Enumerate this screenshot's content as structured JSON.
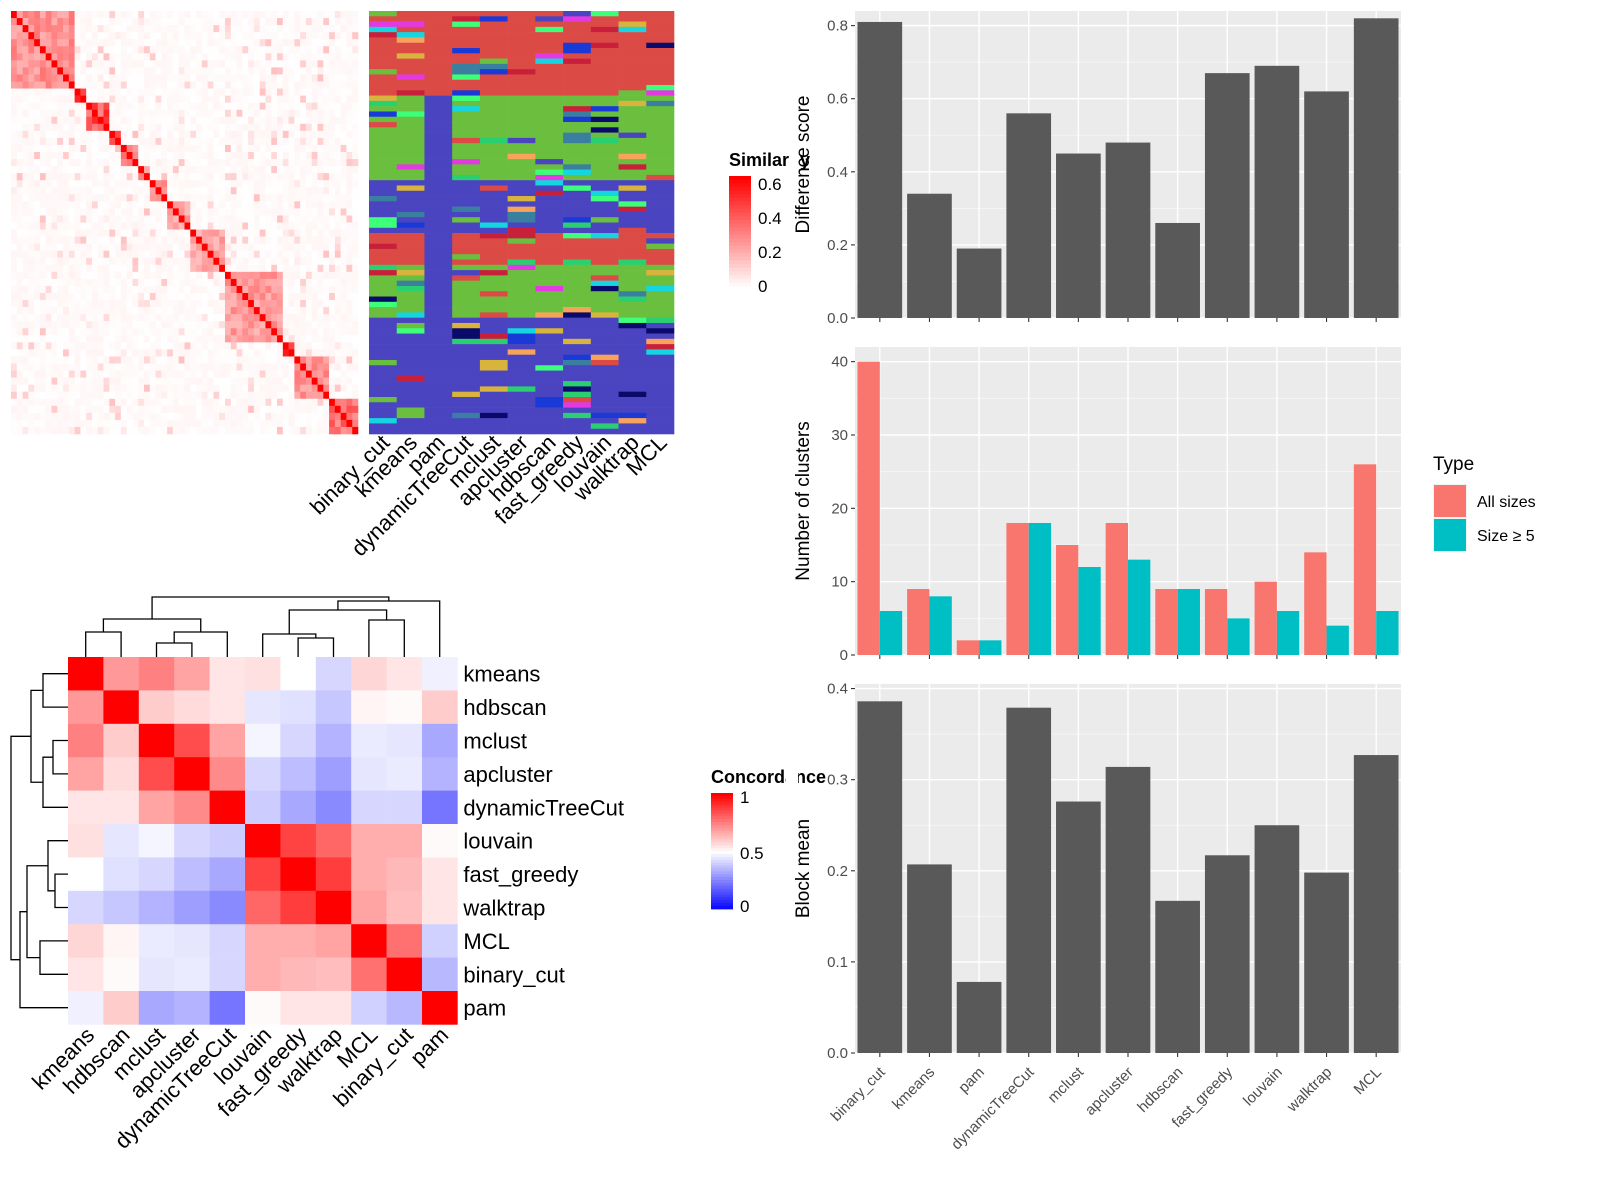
{
  "chart_data": [
    {
      "type": "heatmap",
      "panel": "similarity-matrix",
      "legend": {
        "title": "Similarity",
        "ticks": [
          "0",
          "0.2",
          "0.4",
          "0.6"
        ]
      },
      "diagonal_blocks": [
        {
          "start": 0.0,
          "end": 0.18,
          "strength": 0.55
        },
        {
          "start": 0.18,
          "end": 0.22,
          "strength": 0.9
        },
        {
          "start": 0.22,
          "end": 0.28,
          "strength": 0.85
        },
        {
          "start": 0.28,
          "end": 0.31,
          "strength": 0.95
        },
        {
          "start": 0.31,
          "end": 0.36,
          "strength": 0.7
        },
        {
          "start": 0.36,
          "end": 0.4,
          "strength": 0.6
        },
        {
          "start": 0.4,
          "end": 0.45,
          "strength": 0.5
        },
        {
          "start": 0.45,
          "end": 0.52,
          "strength": 0.45
        },
        {
          "start": 0.52,
          "end": 0.62,
          "strength": 0.45
        },
        {
          "start": 0.62,
          "end": 0.79,
          "strength": 0.5
        },
        {
          "start": 0.79,
          "end": 0.82,
          "strength": 0.95
        },
        {
          "start": 0.82,
          "end": 0.92,
          "strength": 0.55
        },
        {
          "start": 0.92,
          "end": 1.0,
          "strength": 0.7
        }
      ]
    },
    {
      "type": "heatmap",
      "panel": "cluster-assignments",
      "methods": [
        "binary_cut",
        "kmeans",
        "pam",
        "dynamicTreeCut",
        "mclust",
        "apcluster",
        "hdbscan",
        "fast_greedy",
        "louvain",
        "walktrap",
        "MCL"
      ],
      "palette": [
        "#dc4a46",
        "#6bbf3f",
        "#4a44c0",
        "#3dff7a",
        "#e23ae0",
        "#15d6e0",
        "#0a0a6a",
        "#d8b43c",
        "#f7a35c",
        "#3a7fa0",
        "#1a3ad8",
        "#c8203a",
        "#2ad070"
      ]
    },
    {
      "type": "heatmap",
      "panel": "concordance",
      "legend": {
        "title": "Concordance",
        "ticks": [
          "0",
          "0.5",
          "1"
        ]
      },
      "row_labels": [
        "kmeans",
        "hdbscan",
        "mclust",
        "apcluster",
        "dynamicTreeCut",
        "louvain",
        "fast_greedy",
        "walktrap",
        "MCL",
        "binary_cut",
        "pam"
      ],
      "col_labels": [
        "kmeans",
        "hdbscan",
        "mclust",
        "apcluster",
        "dynamicTreeCut",
        "louvain",
        "fast_greedy",
        "walktrap",
        "MCL",
        "binary_cut",
        "pam"
      ],
      "values": [
        [
          1.0,
          0.7,
          0.75,
          0.68,
          0.55,
          0.56,
          0.5,
          0.42,
          0.58,
          0.55,
          0.47
        ],
        [
          0.7,
          1.0,
          0.6,
          0.57,
          0.55,
          0.45,
          0.44,
          0.39,
          0.52,
          0.51,
          0.6
        ],
        [
          0.75,
          0.6,
          1.0,
          0.85,
          0.68,
          0.48,
          0.42,
          0.35,
          0.46,
          0.45,
          0.33
        ],
        [
          0.68,
          0.57,
          0.85,
          1.0,
          0.73,
          0.42,
          0.37,
          0.31,
          0.45,
          0.46,
          0.35
        ],
        [
          0.55,
          0.55,
          0.68,
          0.73,
          1.0,
          0.4,
          0.33,
          0.27,
          0.42,
          0.42,
          0.23
        ],
        [
          0.56,
          0.45,
          0.48,
          0.42,
          0.4,
          1.0,
          0.87,
          0.8,
          0.66,
          0.66,
          0.51
        ],
        [
          0.5,
          0.44,
          0.42,
          0.37,
          0.33,
          0.87,
          1.0,
          0.88,
          0.66,
          0.64,
          0.55
        ],
        [
          0.42,
          0.39,
          0.35,
          0.31,
          0.27,
          0.8,
          0.88,
          1.0,
          0.68,
          0.63,
          0.55
        ],
        [
          0.58,
          0.52,
          0.46,
          0.45,
          0.42,
          0.66,
          0.66,
          0.68,
          1.0,
          0.78,
          0.41
        ],
        [
          0.55,
          0.51,
          0.45,
          0.46,
          0.42,
          0.66,
          0.64,
          0.63,
          0.78,
          1.0,
          0.36
        ],
        [
          0.47,
          0.6,
          0.33,
          0.35,
          0.23,
          0.51,
          0.55,
          0.55,
          0.41,
          0.36,
          1.0
        ]
      ]
    },
    {
      "type": "bar",
      "panel": "difference-score",
      "categories": [
        "binary_cut",
        "kmeans",
        "pam",
        "dynamicTreeCut",
        "mclust",
        "apcluster",
        "hdbscan",
        "fast_greedy",
        "louvain",
        "walktrap",
        "MCL"
      ],
      "values": [
        0.81,
        0.34,
        0.19,
        0.56,
        0.45,
        0.48,
        0.26,
        0.67,
        0.69,
        0.62,
        0.82
      ],
      "ylabel": "Difference score",
      "ylim": [
        0,
        0.84
      ],
      "yticks": [
        0.0,
        0.2,
        0.4,
        0.6,
        0.8
      ],
      "ytick_labels": [
        "0.0",
        "0.2",
        "0.4",
        "0.6",
        "0.8"
      ],
      "bar_color": "#595959",
      "panel_bg": "#ebebeb",
      "grid": true
    },
    {
      "type": "bar",
      "panel": "number-of-clusters",
      "categories": [
        "binary_cut",
        "kmeans",
        "pam",
        "dynamicTreeCut",
        "mclust",
        "apcluster",
        "hdbscan",
        "fast_greedy",
        "louvain",
        "walktrap",
        "MCL"
      ],
      "series": [
        {
          "name": "All sizes",
          "values": [
            40,
            9,
            2,
            18,
            15,
            18,
            9,
            9,
            10,
            14,
            26
          ],
          "color": "#f8766d"
        },
        {
          "name": "Size ≥ 5",
          "values": [
            6,
            8,
            2,
            18,
            12,
            13,
            9,
            5,
            6,
            4,
            6
          ],
          "color": "#00bfc4"
        }
      ],
      "ylabel": "Number of clusters",
      "ylim": [
        0,
        42
      ],
      "yticks": [
        0,
        10,
        20,
        30,
        40
      ],
      "ytick_labels": [
        "0",
        "10",
        "20",
        "30",
        "40"
      ],
      "legend": {
        "title": "Type",
        "position": "right"
      },
      "panel_bg": "#ebebeb",
      "grid": true
    },
    {
      "type": "bar",
      "panel": "block-mean",
      "categories": [
        "binary_cut",
        "kmeans",
        "pam",
        "dynamicTreeCut",
        "mclust",
        "apcluster",
        "hdbscan",
        "fast_greedy",
        "louvain",
        "walktrap",
        "MCL"
      ],
      "values": [
        0.386,
        0.207,
        0.078,
        0.379,
        0.276,
        0.314,
        0.167,
        0.217,
        0.25,
        0.198,
        0.327
      ],
      "ylabel": "Block mean",
      "ylim": [
        0,
        0.405
      ],
      "yticks": [
        0.0,
        0.1,
        0.2,
        0.3,
        0.4
      ],
      "ytick_labels": [
        "0.0",
        "0.1",
        "0.2",
        "0.3",
        "0.4"
      ],
      "bar_color": "#595959",
      "panel_bg": "#ebebeb",
      "grid": true
    }
  ]
}
